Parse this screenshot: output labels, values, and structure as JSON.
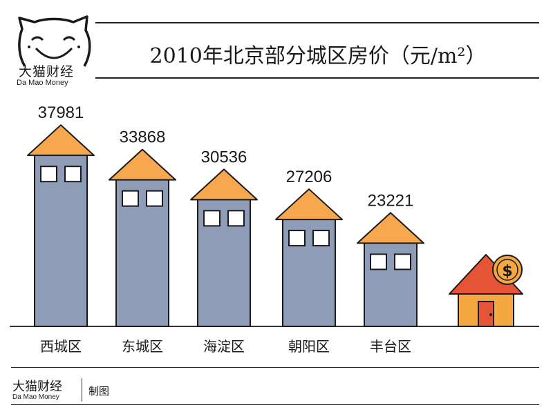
{
  "brand": {
    "name_cn": "大猫财经",
    "name_en": "Da Mao Money"
  },
  "chart_data": {
    "type": "bar",
    "title": "2010年北京部分城区房价（元/m²）",
    "categories": [
      "西城区",
      "东城区",
      "海淀区",
      "朝阳区",
      "丰台区"
    ],
    "values": [
      37981,
      33868,
      30536,
      27206,
      23221
    ],
    "colors": {
      "building": "#8e9cb7",
      "roof": "#f7a84e",
      "outline": "#1a1a1a",
      "window": "#ffffff",
      "house_roof": "#e55434",
      "house_body": "#f5a742",
      "coin": "#f5a742"
    },
    "icons": [
      "building-icon",
      "house-with-dollar-coin-icon"
    ]
  },
  "footer": {
    "brand_cn": "大猫财经",
    "brand_en": "Da Mao Money",
    "made_by": "制图"
  }
}
